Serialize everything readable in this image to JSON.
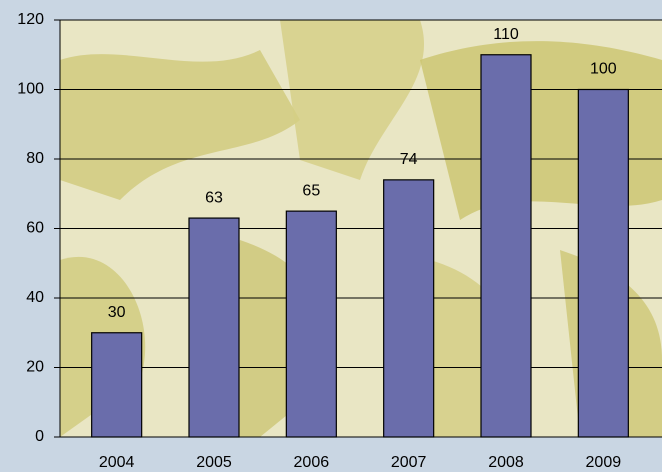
{
  "chart_data": {
    "type": "bar",
    "categories": [
      "2004",
      "2005",
      "2006",
      "2007",
      "2008",
      "2009"
    ],
    "values": [
      30,
      63,
      65,
      74,
      110,
      100
    ],
    "color": "#6a6dab",
    "ylim": [
      0,
      120
    ],
    "yticks": [
      0,
      20,
      40,
      60,
      80,
      100,
      120
    ],
    "grid": true
  }
}
